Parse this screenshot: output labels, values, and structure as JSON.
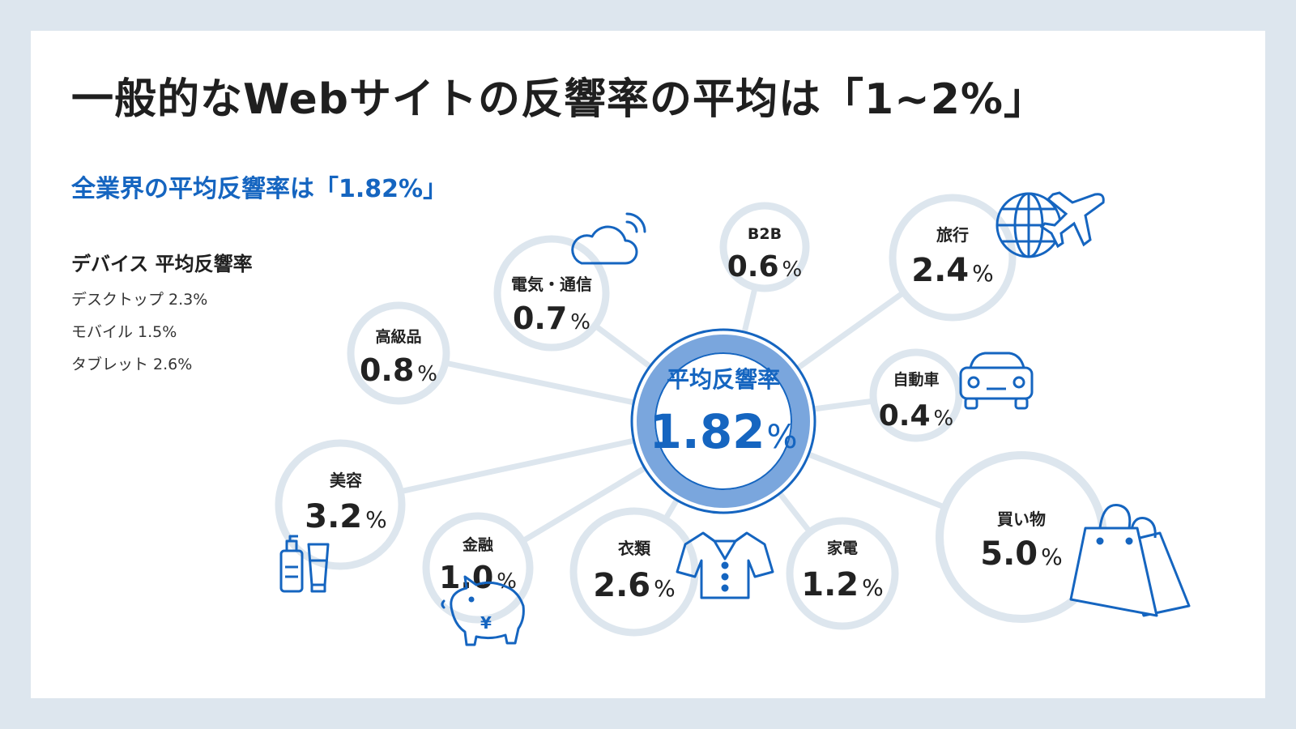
{
  "title": "一般的なWebサイトの反響率の平均は「1~2%」",
  "subtitle": "全業界の平均反響率は「1.82%」",
  "devices": {
    "heading": "デバイス 平均反響率",
    "items": [
      {
        "label": "デスクトップ 2.3%"
      },
      {
        "label": "モバイル 1.5%"
      },
      {
        "label": "タブレット 2.6%"
      }
    ]
  },
  "center": {
    "label": "平均反響率",
    "value": "1.82",
    "unit": "%"
  },
  "colors": {
    "accent": "#1565c0",
    "ring": "#dde6ee",
    "center_ring": "#7aa6dd"
  },
  "industries": [
    {
      "id": "telecom",
      "name": "電気・通信",
      "value": "0.7",
      "unit": "%",
      "icon": "cloud-wifi-icon"
    },
    {
      "id": "b2b",
      "name": "B2B",
      "value": "0.6",
      "unit": "%",
      "icon": ""
    },
    {
      "id": "travel",
      "name": "旅行",
      "value": "2.4",
      "unit": "%",
      "icon": "globe-airplane-icon"
    },
    {
      "id": "luxury",
      "name": "高級品",
      "value": "0.8",
      "unit": "%",
      "icon": ""
    },
    {
      "id": "auto",
      "name": "自動車",
      "value": "0.4",
      "unit": "%",
      "icon": "car-icon"
    },
    {
      "id": "beauty",
      "name": "美容",
      "value": "3.2",
      "unit": "%",
      "icon": "cosmetics-bottles-icon"
    },
    {
      "id": "finance",
      "name": "金融",
      "value": "1.0",
      "unit": "%",
      "icon": "piggy-bank-yen-icon"
    },
    {
      "id": "apparel",
      "name": "衣類",
      "value": "2.6",
      "unit": "%",
      "icon": "shirt-icon"
    },
    {
      "id": "appliances",
      "name": "家電",
      "value": "1.2",
      "unit": "%",
      "icon": ""
    },
    {
      "id": "shopping",
      "name": "買い物",
      "value": "5.0",
      "unit": "%",
      "icon": "shopping-bags-icon"
    }
  ]
}
